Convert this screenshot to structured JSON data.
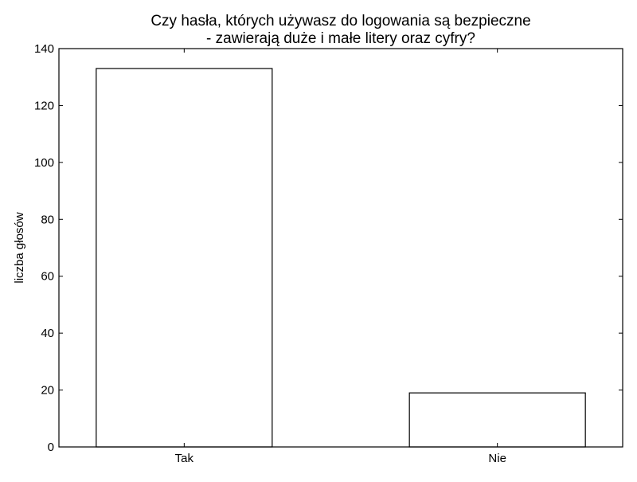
{
  "chart_data": {
    "type": "bar",
    "title_lines": [
      "Czy hasła, których używasz do logowania są bezpieczne",
      "- zawierają duże i małe litery oraz cyfry?"
    ],
    "xlabel": "",
    "ylabel": "liczba głosów",
    "categories": [
      "Tak",
      "Nie"
    ],
    "values": [
      133,
      19
    ],
    "ylim": [
      0,
      140
    ],
    "yticks": [
      0,
      20,
      40,
      60,
      80,
      100,
      120,
      140
    ],
    "grid": false,
    "legend": "none",
    "bar_fill": "#ffffff",
    "bar_stroke": "#000000"
  }
}
